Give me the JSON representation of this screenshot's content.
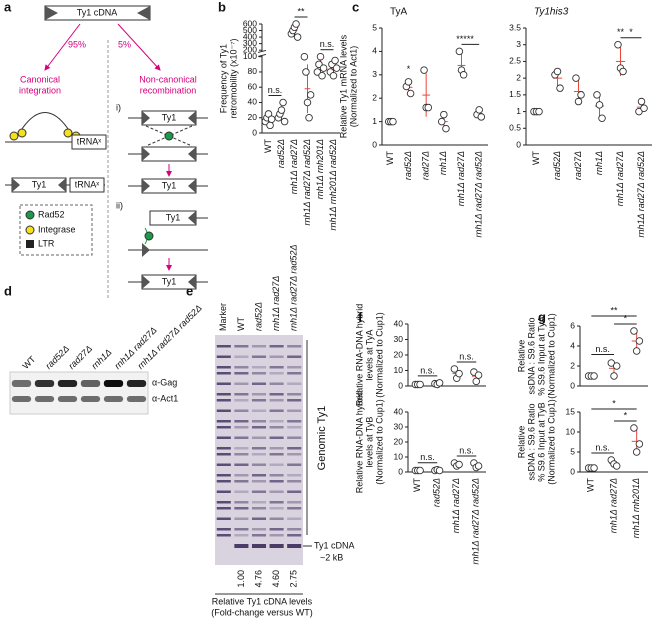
{
  "panel_labels": [
    "a",
    "b",
    "c",
    "d",
    "e",
    "f",
    "g"
  ],
  "diagram": {
    "cdna": "Ty1 cDNA",
    "pct_canonical": "95%",
    "pct_noncanonical": "5%",
    "canonical": [
      "Canonical",
      "integration"
    ],
    "noncanonical": [
      "Non-canonical",
      "recombination"
    ],
    "trna": "tRNAˣ",
    "ty1": "Ty1",
    "step1": "i)",
    "step2": "ii)",
    "legend": [
      "Rad52",
      "Integrase",
      "LTR"
    ]
  },
  "blot": {
    "lanes": [
      "WT",
      "rad52Δ",
      "rad27Δ",
      "rnh1Δ",
      "rnh1Δ rad27Δ",
      "rnh1Δ rad27Δ rad52Δ"
    ],
    "antibodies": [
      "α-Gag",
      "α-Act1"
    ]
  },
  "gel": {
    "lanes": [
      "Marker",
      "WT",
      "rad52Δ",
      "rnh1Δ rad27Δ",
      "rnh1Δ rad27Δ rad52Δ"
    ],
    "genomic": "Genomic Ty1",
    "cdna": [
      "Ty1 cDNA",
      "~2 kB"
    ],
    "levels": [
      "1.00",
      "4.76",
      "4.60",
      "2.75"
    ],
    "caption": [
      "Relative Ty1 cDNA levels",
      "(Fold-change versus WT)"
    ]
  },
  "chart_data": [
    {
      "type": "dot",
      "ylabel": [
        "Frequency of Ty1",
        "retromobility (x10⁻⁷)"
      ],
      "categories": [
        "WT",
        "rad52Δ",
        "rnh1Δ rad27Δ",
        "rnh1Δ rad27Δ rad52Δ",
        "rnh1Δ rnh201Δ",
        "rnh1Δ rnh201Δ rad52Δ"
      ],
      "points": [
        [
          15,
          20,
          25,
          10,
          18
        ],
        [
          20,
          25,
          30,
          40,
          15
        ],
        [
          450,
          500,
          550,
          600,
          400
        ],
        [
          100,
          80,
          40,
          20,
          50
        ],
        [
          80,
          90,
          100,
          75,
          85
        ],
        [
          80,
          90,
          75,
          95,
          85
        ]
      ],
      "ylim": [
        0,
        600
      ],
      "axis_break": [
        100,
        200
      ],
      "yticks": [
        0,
        20,
        40,
        60,
        80,
        100,
        200,
        300,
        400,
        500,
        600
      ],
      "color": "#ffffff",
      "summary_color": "#e8473a",
      "annotations": [
        {
          "label": "n.s.",
          "from": 0,
          "to": 1
        },
        {
          "label": "**",
          "from": 2,
          "to": 3
        },
        {
          "label": "n.s.",
          "from": 4,
          "to": 5
        }
      ]
    },
    {
      "type": "dot",
      "title": "TyA",
      "ylabel": [
        "Relative Ty1 mRNA levels",
        "(Normalized to Act1)"
      ],
      "categories": [
        "WT",
        "rad52Δ",
        "rad27Δ",
        "rnh1Δ",
        "rnh1Δ rad27Δ",
        "rnh1Δ rad27Δ rad52Δ"
      ],
      "points": [
        [
          1,
          1,
          1
        ],
        [
          2.5,
          2.7,
          2.2
        ],
        [
          3.2,
          1.6,
          1.6
        ],
        [
          1,
          1.3,
          0.7
        ],
        [
          4,
          3.2,
          3
        ],
        [
          1.3,
          1.5,
          1.2
        ]
      ],
      "ylim": [
        0,
        5
      ],
      "yticks": [
        0,
        1,
        2,
        3,
        4,
        5
      ],
      "color": "#ffffff",
      "summary_color": "#e8473a",
      "annotations": [
        {
          "label": "*",
          "from": 1,
          "to": 1
        },
        {
          "label": "***",
          "from": 4,
          "to": 4
        },
        {
          "label": "**",
          "from": 4,
          "to": 5
        }
      ]
    },
    {
      "type": "dot",
      "title": "Ty1his3",
      "categories": [
        "WT",
        "rad52Δ",
        "rad27Δ",
        "rnh1Δ",
        "rnh1Δ rad27Δ",
        "rnh1Δ rad27Δ rad52Δ"
      ],
      "points": [
        [
          1,
          1,
          1
        ],
        [
          2.1,
          2.2,
          1.7
        ],
        [
          2,
          1.3,
          1.5
        ],
        [
          1.5,
          1.2,
          0.8
        ],
        [
          3,
          2.3,
          2.2
        ],
        [
          1,
          1.3,
          1.1
        ]
      ],
      "ylim": [
        0,
        3.5
      ],
      "yticks": [
        0,
        0.5,
        1,
        1.5,
        2,
        2.5,
        3,
        3.5
      ],
      "color": "#ffffff",
      "summary_color": "#e8473a",
      "annotations": [
        {
          "label": "**",
          "from": 4,
          "to": 4
        },
        {
          "label": "*",
          "from": 4,
          "to": 5
        }
      ]
    },
    {
      "type": "dot",
      "ylabel": [
        "Relative RNA-DNA hybrid",
        "levels at TyA",
        "(Normalized to Cup1)"
      ],
      "categories": [
        "WT",
        "rad52Δ",
        "rnh1Δ rad27Δ",
        "rnh1Δ rad27Δ rad52Δ"
      ],
      "points": [
        [
          1,
          1,
          1
        ],
        [
          1.5,
          1,
          2
        ],
        [
          11,
          5,
          8
        ],
        [
          9,
          3,
          7
        ]
      ],
      "ylim": [
        0,
        40
      ],
      "yticks": [
        0,
        10,
        20,
        30,
        40
      ],
      "color": "#ffffff",
      "summary_color": "#e8473a",
      "annotations": [
        {
          "label": "n.s.",
          "from": 0,
          "to": 1
        },
        {
          "label": "n.s.",
          "from": 2,
          "to": 3
        }
      ]
    },
    {
      "type": "dot",
      "ylabel": [
        "Relative RNA-DNA hybrid",
        "levels at TyB",
        "(Normalized to Cup1)"
      ],
      "categories": [
        "WT",
        "rad52Δ",
        "rnh1Δ rad27Δ",
        "rnh1Δ rad27Δ rad52Δ"
      ],
      "points": [
        [
          1,
          1,
          1
        ],
        [
          1,
          1.5,
          1
        ],
        [
          6,
          4,
          5
        ],
        [
          6,
          3,
          4
        ]
      ],
      "ylim": [
        0,
        40
      ],
      "yticks": [
        0,
        10,
        20,
        30,
        40
      ],
      "color": "#ffffff",
      "summary_color": "#e8473a",
      "annotations": [
        {
          "label": "n.s.",
          "from": 0,
          "to": 1
        },
        {
          "label": "n.s.",
          "from": 2,
          "to": 3
        }
      ]
    },
    {
      "type": "dot",
      "ylabel": [
        "Relative",
        "ssDNA : S9.6 Ratio",
        "% S9.6 Input at TyA",
        "(Normalized to Cup1)"
      ],
      "categories": [
        "WT",
        "rnh1Δ rad27Δ",
        "rnh1Δ rnh201Δ"
      ],
      "points": [
        [
          1,
          1,
          1
        ],
        [
          2.3,
          1,
          2
        ],
        [
          5.5,
          3.5,
          4.5
        ]
      ],
      "ylim": [
        0,
        6
      ],
      "yticks": [
        0,
        2,
        4,
        6
      ],
      "color": "#ffffff",
      "summary_color": "#e8473a",
      "annotations": [
        {
          "label": "n.s.",
          "from": 0,
          "to": 1
        },
        {
          "label": "**",
          "from": 0,
          "to": 2
        },
        {
          "label": "*",
          "from": 1,
          "to": 2
        }
      ]
    },
    {
      "type": "dot",
      "ylabel": [
        "Relative",
        "ssDNA : S9.6 Ratio",
        "% S9.6 Input at TyB",
        "(Normalized to Cup1)"
      ],
      "categories": [
        "WT",
        "rnh1Δ rad27Δ",
        "rnh1Δ rnh201Δ"
      ],
      "points": [
        [
          1,
          1,
          1
        ],
        [
          3,
          2,
          1.5
        ],
        [
          11,
          5,
          7
        ]
      ],
      "ylim": [
        0,
        15
      ],
      "yticks": [
        0,
        5,
        10,
        15
      ],
      "color": "#ffffff",
      "summary_color": "#e8473a",
      "annotations": [
        {
          "label": "n.s.",
          "from": 0,
          "to": 1
        },
        {
          "label": "*",
          "from": 0,
          "to": 2
        },
        {
          "label": "*",
          "from": 1,
          "to": 2
        }
      ]
    }
  ]
}
